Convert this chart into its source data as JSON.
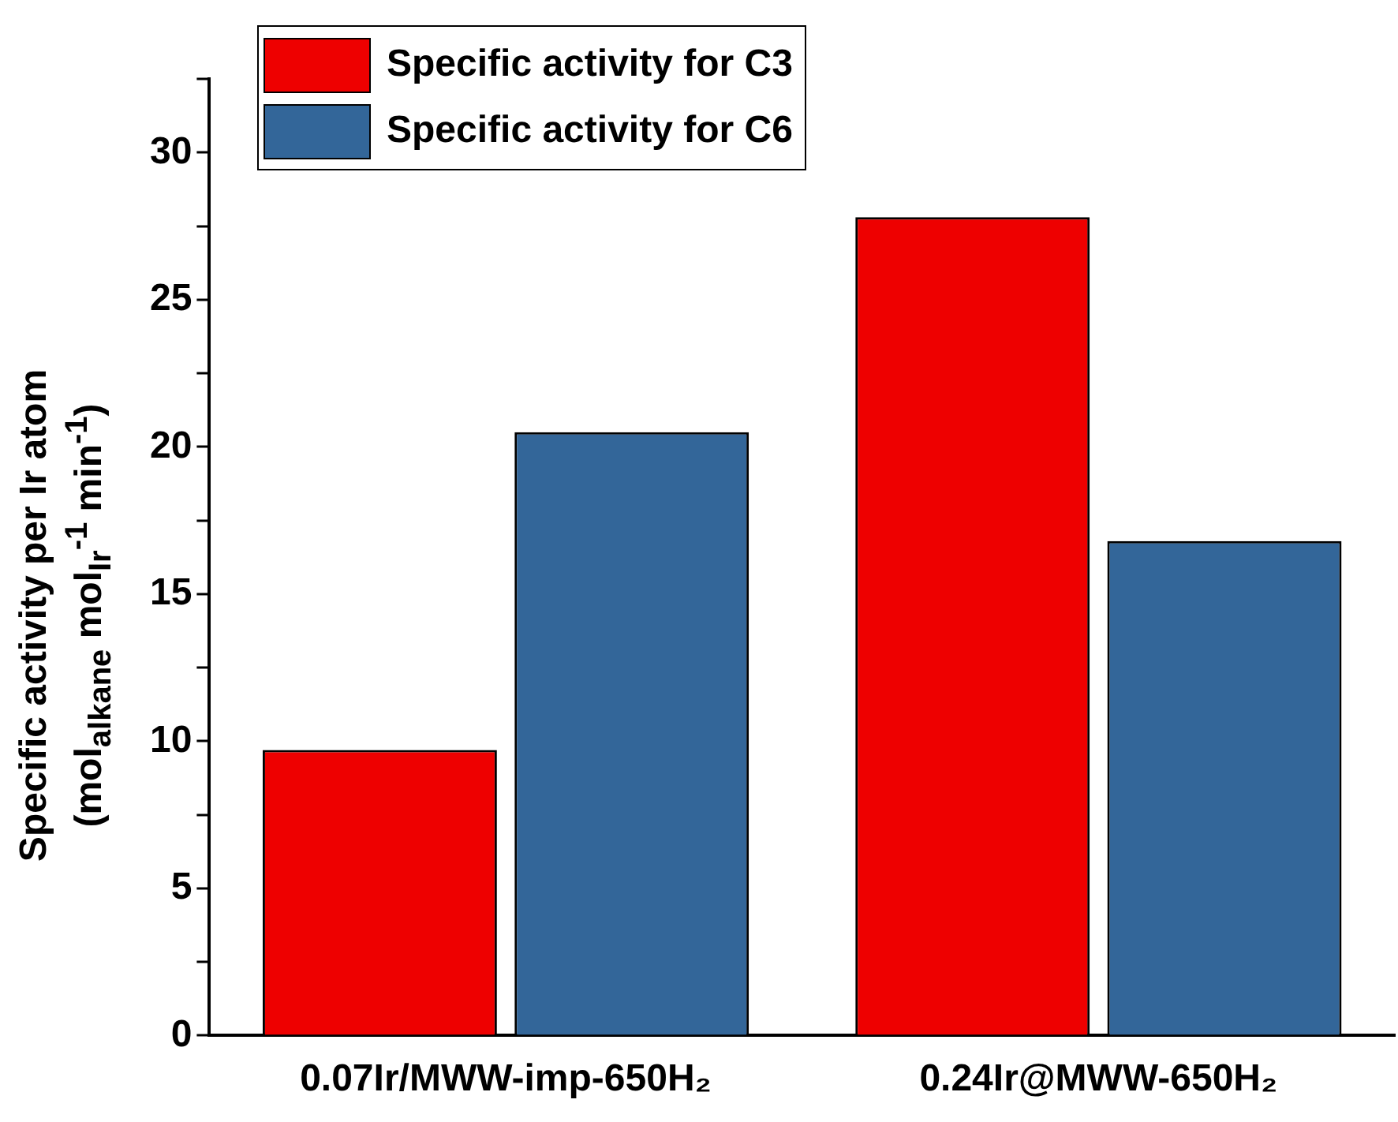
{
  "chart_data": {
    "type": "bar",
    "ylabel": "Specific activity per Ir atom\n(mol$_{alkane}$ mol$_{Ir}$$^{-1}$ min$^{-1}$)",
    "categories": [
      "0.07Ir/MWW-imp-650H₂",
      "0.24Ir@MWW-650H₂"
    ],
    "series": [
      {
        "name": "Specific activity for C3",
        "color": "#ee0000",
        "values": [
          9.7,
          27.8
        ]
      },
      {
        "name": "Specific activity for C6",
        "color": "#336699",
        "values": [
          20.5,
          16.8
        ]
      }
    ],
    "ylim": [
      0,
      32.5
    ],
    "yticks": [
      0,
      {
        "value": 2.5,
        "label": null
      },
      5,
      {
        "value": 7.5,
        "label": null
      },
      10,
      {
        "value": 12.5,
        "label": null
      },
      15,
      {
        "value": 17.5,
        "label": null
      },
      20,
      {
        "value": 22.5,
        "label": null
      },
      25,
      {
        "value": 27.5,
        "label": null
      },
      30,
      {
        "value": 32.5,
        "label": null
      }
    ],
    "grid": false,
    "legend": "top left"
  }
}
